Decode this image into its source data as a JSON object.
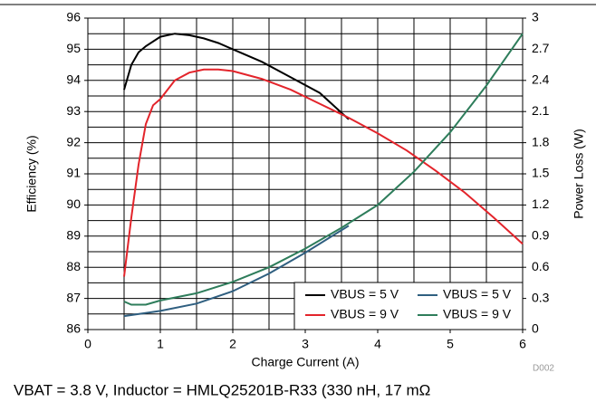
{
  "chart_data": {
    "type": "line",
    "xlabel": "Charge Current (A)",
    "ylabel": "Efficiency (%)",
    "y2label": "Power Loss (W)",
    "xlim": [
      0,
      6
    ],
    "xticks": [
      0,
      1,
      2,
      3,
      4,
      5,
      6
    ],
    "ylim": [
      86,
      96
    ],
    "yticks": [
      86,
      87,
      88,
      89,
      90,
      91,
      92,
      93,
      94,
      95,
      96
    ],
    "y2lim": [
      0,
      3
    ],
    "y2ticks": [
      0,
      0.3,
      0.6,
      0.9,
      1.2,
      1.5,
      1.8,
      2.1,
      2.4,
      2.7,
      3
    ],
    "grid": true,
    "legend": "lower right",
    "series": [
      {
        "name": "VBUS = 5 V",
        "color": "#000000",
        "x": [
          0.5,
          0.6,
          0.7,
          0.8,
          1.0,
          1.2,
          1.4,
          1.6,
          1.8,
          2.0,
          2.4,
          2.8,
          3.2,
          3.6
        ],
        "values": [
          93.7,
          94.5,
          94.9,
          95.1,
          95.4,
          95.5,
          95.45,
          95.35,
          95.2,
          95.0,
          94.6,
          94.1,
          93.6,
          92.75
        ]
      },
      {
        "name": "VBUS = 9 V",
        "color": "#e3242b",
        "x": [
          0.5,
          0.6,
          0.7,
          0.8,
          0.9,
          1.0,
          1.2,
          1.4,
          1.6,
          1.8,
          2.0,
          2.4,
          2.8,
          3.2,
          3.6,
          4.0,
          4.4,
          4.8,
          5.2,
          5.6,
          6.0
        ],
        "values": [
          87.7,
          89.6,
          91.3,
          92.6,
          93.2,
          93.4,
          94.0,
          94.25,
          94.35,
          94.35,
          94.3,
          94.05,
          93.7,
          93.25,
          92.8,
          92.3,
          91.75,
          91.1,
          90.4,
          89.6,
          88.75
        ]
      },
      {
        "name": "VBUS = 5 V",
        "color": "#2f5f80",
        "axis": "y2",
        "x": [
          0.5,
          1.0,
          1.5,
          2.0,
          2.5,
          3.0,
          3.6
        ],
        "values": [
          0.13,
          0.18,
          0.25,
          0.37,
          0.54,
          0.74,
          1.0
        ]
      },
      {
        "name": "VBUS = 9 V",
        "color": "#2e7d5b",
        "axis": "y2",
        "x": [
          0.5,
          0.6,
          0.8,
          1.0,
          1.5,
          2.0,
          2.5,
          3.0,
          3.5,
          4.0,
          4.5,
          5.0,
          5.5,
          6.0
        ],
        "values": [
          0.27,
          0.24,
          0.24,
          0.28,
          0.35,
          0.46,
          0.6,
          0.78,
          0.98,
          1.2,
          1.52,
          1.9,
          2.35,
          2.85
        ]
      }
    ],
    "figure_id": "D002",
    "note": "VBAT = 3.8 V, Inductor = HMLQ25201B-R33 (330 nH, 17 mΩ"
  }
}
